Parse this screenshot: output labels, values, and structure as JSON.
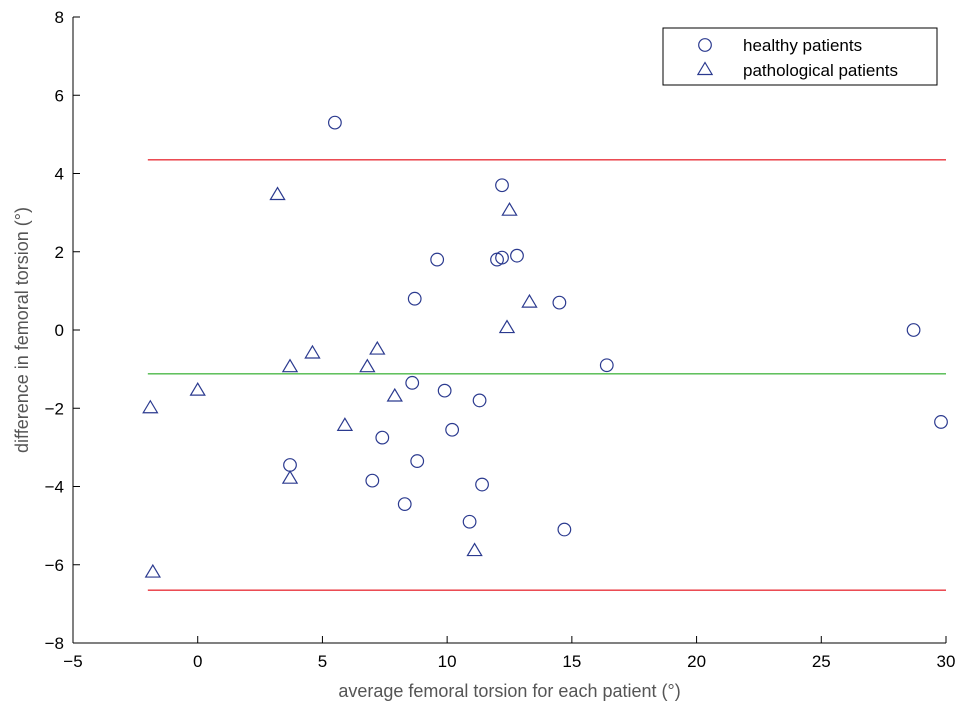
{
  "chart_data": {
    "type": "scatter",
    "xlabel": "average femoral torsion for each patient (°)",
    "ylabel": "difference in femoral torsion (°)",
    "xlim": [
      -5,
      30
    ],
    "ylim": [
      -8,
      8
    ],
    "xticks": [
      -5,
      0,
      5,
      10,
      15,
      20,
      25,
      30
    ],
    "yticks": [
      -8,
      -6,
      -4,
      -2,
      0,
      2,
      4,
      6,
      8
    ],
    "xtick_labels": [
      "−5",
      "0",
      "5",
      "10",
      "15",
      "20",
      "25",
      "30"
    ],
    "ytick_labels": [
      "−8",
      "−6",
      "−4",
      "−2",
      "0",
      "2",
      "4",
      "6",
      "8"
    ],
    "grid": false,
    "legend_position": "top-right",
    "series": [
      {
        "name": "healthy patients",
        "marker": "circle",
        "color": "#2b3a8f",
        "points": [
          [
            5.5,
            5.3
          ],
          [
            12.2,
            3.7
          ],
          [
            9.6,
            1.8
          ],
          [
            12.0,
            1.8
          ],
          [
            12.2,
            1.85
          ],
          [
            12.8,
            1.9
          ],
          [
            8.7,
            0.8
          ],
          [
            14.5,
            0.7
          ],
          [
            16.4,
            -0.9
          ],
          [
            28.7,
            0.0
          ],
          [
            29.8,
            -2.35
          ],
          [
            8.6,
            -1.35
          ],
          [
            9.9,
            -1.55
          ],
          [
            11.3,
            -1.8
          ],
          [
            10.2,
            -2.55
          ],
          [
            7.4,
            -2.75
          ],
          [
            3.7,
            -3.45
          ],
          [
            8.8,
            -3.35
          ],
          [
            7.0,
            -3.85
          ],
          [
            11.4,
            -3.95
          ],
          [
            8.3,
            -4.45
          ],
          [
            10.9,
            -4.9
          ],
          [
            14.7,
            -5.1
          ]
        ]
      },
      {
        "name": "pathological patients",
        "marker": "triangle",
        "color": "#2b3a8f",
        "points": [
          [
            3.2,
            3.45
          ],
          [
            12.5,
            3.05
          ],
          [
            13.3,
            0.7
          ],
          [
            12.4,
            0.05
          ],
          [
            4.6,
            -0.6
          ],
          [
            3.7,
            -0.95
          ],
          [
            7.2,
            -0.5
          ],
          [
            6.8,
            -0.95
          ],
          [
            7.9,
            -1.7
          ],
          [
            0.0,
            -1.55
          ],
          [
            -1.9,
            -2.0
          ],
          [
            5.9,
            -2.45
          ],
          [
            3.7,
            -3.8
          ],
          [
            11.1,
            -5.65
          ],
          [
            -1.8,
            -6.2
          ]
        ]
      }
    ],
    "reference_lines": [
      {
        "y": 4.35,
        "color": "#e8333b"
      },
      {
        "y": -1.12,
        "color": "#4cb848"
      },
      {
        "y": -6.65,
        "color": "#e8333b"
      }
    ],
    "ref_line_x_range": [
      -2,
      30
    ]
  }
}
